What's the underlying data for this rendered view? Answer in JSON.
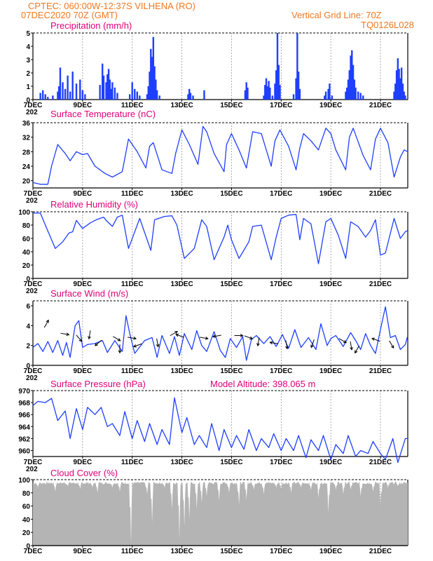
{
  "header": {
    "line1": "CPTEC:   060:00W-12:37S   VILHENA (RO)",
    "line2": "07DEC2020 70Z (GMT)",
    "grid_note": "Vertical Grid Line: 70Z",
    "model_code": "TQ0126L028"
  },
  "colors": {
    "header": "#f07820",
    "panel_title": "#e0007a",
    "series": "#1f3fff",
    "cloud_fill": "#b4b4b4",
    "arrow": "#000000"
  },
  "x_axis": {
    "ticks": [
      "7DEC",
      "9DEC",
      "11DEC",
      "13DEC",
      "15DEC",
      "17DEC",
      "19DEC",
      "21DEC"
    ],
    "range_days": [
      7,
      22.1
    ],
    "stub_label": "202"
  },
  "panels": {
    "precipitation": {
      "title": "Precipitation (mm/h)",
      "yticks": [
        "0",
        "1",
        "2",
        "3",
        "4",
        "5"
      ]
    },
    "temperature": {
      "title": "Surface Temperature (nC)",
      "yticks": [
        "20",
        "24",
        "28",
        "32",
        "36"
      ]
    },
    "humidity": {
      "title": "Relative Humidity (%)",
      "yticks": [
        "0",
        "20",
        "40",
        "60",
        "80",
        "100"
      ]
    },
    "wind": {
      "title": "Surface Wind (m/s)",
      "yticks": [
        "0",
        "2",
        "4",
        "6"
      ]
    },
    "pressure": {
      "title": "Surface Pressure (hPa)",
      "altitude": "Model Altitude: 398.065 m",
      "yticks": [
        "960",
        "962",
        "964",
        "966",
        "968",
        "970"
      ]
    },
    "cloud": {
      "title": "Cloud Cover (%)",
      "yticks": [
        "0",
        "20",
        "40",
        "60",
        "80",
        "100"
      ]
    }
  },
  "chart_data": [
    {
      "type": "bar",
      "id": "precipitation",
      "title": "Precipitation (mm/h)",
      "ylim": [
        0,
        5
      ],
      "x_unit": "day of December 2020",
      "spikes": [
        [
          7.3,
          0.5
        ],
        [
          7.4,
          0.7
        ],
        [
          7.5,
          0.4
        ],
        [
          7.6,
          0.2
        ],
        [
          7.8,
          0.3
        ],
        [
          8.0,
          0.6
        ],
        [
          8.05,
          1.0
        ],
        [
          8.1,
          2.4
        ],
        [
          8.2,
          1.3
        ],
        [
          8.3,
          0.8
        ],
        [
          8.4,
          1.8
        ],
        [
          8.5,
          0.6
        ],
        [
          8.6,
          2.1
        ],
        [
          8.75,
          1.2
        ],
        [
          8.9,
          1.5
        ],
        [
          9.0,
          0.7
        ],
        [
          9.1,
          0.4
        ],
        [
          9.7,
          1.1
        ],
        [
          9.8,
          2.7
        ],
        [
          9.85,
          1.8
        ],
        [
          9.95,
          1.3
        ],
        [
          10.0,
          1.9
        ],
        [
          10.05,
          2.3
        ],
        [
          10.1,
          1.5
        ],
        [
          10.15,
          0.8
        ],
        [
          10.2,
          1.3
        ],
        [
          10.3,
          0.9
        ],
        [
          10.4,
          0.5
        ],
        [
          10.9,
          0.4
        ],
        [
          11.0,
          1.3
        ],
        [
          11.1,
          0.8
        ],
        [
          11.2,
          0.6
        ],
        [
          11.3,
          0.3
        ],
        [
          11.6,
          0.4
        ],
        [
          11.65,
          1.0
        ],
        [
          11.7,
          2.1
        ],
        [
          11.75,
          3.8
        ],
        [
          11.8,
          3.2
        ],
        [
          11.85,
          4.7
        ],
        [
          11.9,
          2.5
        ],
        [
          11.95,
          1.5
        ],
        [
          12.0,
          0.7
        ],
        [
          12.1,
          0.3
        ],
        [
          13.25,
          0.4
        ],
        [
          13.3,
          0.8
        ],
        [
          13.35,
          0.5
        ],
        [
          13.45,
          0.3
        ],
        [
          13.9,
          0.7
        ],
        [
          15.55,
          0.7
        ],
        [
          15.6,
          1.3
        ],
        [
          15.65,
          0.9
        ],
        [
          16.3,
          0.3
        ],
        [
          16.35,
          1.1
        ],
        [
          16.4,
          1.6
        ],
        [
          16.45,
          1.0
        ],
        [
          16.5,
          1.4
        ],
        [
          16.55,
          0.9
        ],
        [
          16.65,
          0.3
        ],
        [
          16.75,
          1.2
        ],
        [
          16.8,
          2.2
        ],
        [
          16.85,
          5.0
        ],
        [
          16.9,
          2.6
        ],
        [
          16.95,
          1.1
        ],
        [
          17.5,
          0.4
        ],
        [
          17.6,
          1.6
        ],
        [
          17.65,
          5.0
        ],
        [
          17.7,
          2.1
        ],
        [
          17.75,
          0.8
        ],
        [
          18.75,
          0.3
        ],
        [
          18.8,
          0.6
        ],
        [
          18.9,
          0.8
        ],
        [
          18.95,
          1.2
        ],
        [
          19.05,
          0.3
        ],
        [
          19.6,
          0.6
        ],
        [
          19.65,
          0.9
        ],
        [
          19.7,
          1.5
        ],
        [
          19.75,
          2.2
        ],
        [
          19.8,
          3.3
        ],
        [
          19.85,
          3.7
        ],
        [
          19.9,
          2.6
        ],
        [
          19.95,
          1.5
        ],
        [
          20.0,
          0.9
        ],
        [
          20.1,
          0.6
        ],
        [
          20.2,
          0.5
        ],
        [
          20.3,
          0.3
        ],
        [
          21.55,
          0.6
        ],
        [
          21.6,
          1.2
        ],
        [
          21.65,
          2.2
        ],
        [
          21.7,
          3.1
        ],
        [
          21.75,
          2.3
        ],
        [
          21.8,
          1.6
        ],
        [
          21.85,
          2.4
        ],
        [
          21.9,
          1.2
        ],
        [
          21.95,
          0.6
        ],
        [
          22.0,
          0.3
        ]
      ]
    },
    {
      "type": "line",
      "id": "temperature",
      "title": "Surface Temperature (nC)",
      "ylim": [
        18,
        36
      ],
      "x": [
        7.0,
        7.3,
        7.6,
        7.75,
        8.0,
        8.3,
        8.5,
        8.75,
        9.0,
        9.2,
        9.5,
        9.9,
        10.2,
        10.6,
        10.85,
        11.2,
        11.55,
        11.7,
        11.85,
        12.2,
        12.6,
        12.75,
        13.0,
        13.3,
        13.65,
        13.85,
        14.0,
        14.3,
        14.7,
        14.8,
        15.0,
        15.3,
        15.6,
        15.85,
        16.2,
        16.6,
        16.75,
        16.95,
        17.3,
        17.6,
        17.75,
        17.9,
        18.2,
        18.5,
        18.8,
        19.0,
        19.2,
        19.6,
        19.75,
        19.9,
        20.3,
        20.6,
        20.8,
        21.0,
        21.3,
        21.55,
        21.8,
        21.95,
        22.1
      ],
      "y": [
        19.5,
        19.0,
        19.0,
        24.0,
        30.0,
        27.5,
        25.5,
        28.0,
        27.2,
        27.5,
        24.0,
        22.0,
        21.0,
        22.5,
        31.5,
        28.0,
        23.5,
        29.5,
        30.5,
        23.0,
        22.0,
        27.5,
        34.0,
        30.0,
        24.5,
        35.0,
        33.5,
        27.5,
        22.5,
        30.0,
        33.0,
        28.5,
        23.5,
        33.5,
        33.0,
        24.0,
        31.0,
        34.0,
        29.5,
        23.0,
        29.0,
        33.0,
        31.0,
        28.5,
        34.5,
        33.0,
        28.5,
        23.0,
        32.0,
        34.5,
        27.0,
        23.0,
        31.5,
        34.5,
        30.5,
        21.0,
        26.5,
        28.5,
        28.0
      ]
    },
    {
      "type": "line",
      "id": "humidity",
      "title": "Relative Humidity (%)",
      "ylim": [
        0,
        100
      ],
      "x": [
        7.0,
        7.3,
        7.5,
        7.9,
        8.2,
        8.45,
        8.6,
        8.75,
        9.0,
        9.3,
        9.55,
        9.85,
        9.95,
        10.2,
        10.4,
        10.6,
        10.85,
        11.3,
        11.75,
        11.9,
        12.3,
        12.6,
        12.8,
        13.1,
        13.5,
        13.8,
        14.0,
        14.3,
        14.7,
        14.85,
        15.0,
        15.3,
        15.7,
        15.85,
        16.2,
        16.6,
        16.8,
        17.0,
        17.3,
        17.6,
        17.75,
        17.9,
        18.2,
        18.5,
        18.8,
        19.0,
        19.3,
        19.6,
        19.8,
        20.1,
        20.4,
        20.6,
        20.8,
        21.0,
        21.2,
        21.55,
        21.8,
        22.0,
        22.1
      ],
      "y": [
        98,
        98,
        80,
        45,
        55,
        68,
        70,
        87,
        75,
        83,
        88,
        92,
        87,
        78,
        92,
        95,
        45,
        90,
        42,
        88,
        93,
        94,
        80,
        30,
        45,
        88,
        78,
        28,
        62,
        80,
        58,
        30,
        55,
        78,
        80,
        28,
        62,
        90,
        95,
        96,
        58,
        90,
        82,
        22,
        85,
        90,
        65,
        30,
        85,
        78,
        62,
        72,
        88,
        35,
        38,
        90,
        60,
        70,
        72
      ]
    },
    {
      "type": "line",
      "id": "wind",
      "title": "Surface Wind (m/s)",
      "ylim": [
        0,
        6.5
      ],
      "x": [
        7.0,
        7.2,
        7.4,
        7.6,
        7.8,
        8.0,
        8.2,
        8.35,
        8.5,
        8.7,
        8.85,
        9.0,
        9.2,
        9.5,
        9.8,
        10.0,
        10.3,
        10.6,
        10.75,
        10.9,
        11.1,
        11.5,
        11.8,
        12.0,
        12.2,
        12.5,
        12.7,
        12.9,
        13.1,
        13.4,
        13.6,
        13.8,
        14.0,
        14.3,
        14.55,
        14.75,
        14.95,
        15.2,
        15.45,
        15.6,
        15.8,
        16.0,
        16.3,
        16.55,
        16.8,
        17.05,
        17.3,
        17.55,
        17.8,
        18.1,
        18.4,
        18.6,
        18.85,
        19.0,
        19.2,
        19.5,
        19.8,
        20.0,
        20.2,
        20.4,
        20.6,
        20.8,
        21.0,
        21.2,
        21.4,
        21.6,
        21.8,
        22.0,
        22.1
      ],
      "y": [
        1.8,
        2.2,
        1.4,
        2.4,
        1.3,
        2.5,
        1.0,
        2.3,
        0.8,
        4.0,
        4.5,
        1.8,
        2.1,
        2.2,
        2.5,
        1.3,
        2.5,
        1.4,
        5.0,
        3.2,
        1.2,
        2.5,
        2.8,
        0.8,
        3.0,
        1.2,
        2.9,
        1.0,
        3.2,
        1.6,
        3.5,
        2.0,
        1.4,
        3.4,
        1.5,
        0.8,
        2.7,
        1.8,
        2.9,
        0.5,
        2.6,
        3.0,
        2.2,
        2.9,
        1.9,
        3.1,
        1.7,
        3.6,
        1.8,
        2.8,
        1.6,
        4.2,
        2.0,
        2.7,
        3.0,
        1.9,
        3.3,
        2.5,
        1.6,
        3.2,
        2.0,
        1.2,
        3.6,
        5.9,
        2.8,
        3.0,
        1.6,
        2.1,
        3.0
      ]
    },
    {
      "type": "line",
      "id": "pressure",
      "title": "Surface Pressure (hPa)",
      "ylim": [
        959,
        970
      ],
      "x": [
        7.0,
        7.2,
        7.5,
        7.75,
        8.0,
        8.3,
        8.5,
        8.75,
        9.0,
        9.2,
        9.5,
        9.75,
        10.0,
        10.2,
        10.5,
        10.7,
        11.0,
        11.2,
        11.5,
        11.7,
        12.0,
        12.2,
        12.5,
        12.7,
        13.0,
        13.2,
        13.5,
        13.7,
        14.0,
        14.2,
        14.5,
        14.7,
        15.0,
        15.2,
        15.5,
        15.7,
        16.0,
        16.2,
        16.5,
        16.7,
        17.0,
        17.2,
        17.5,
        17.7,
        18.0,
        18.2,
        18.5,
        18.7,
        19.0,
        19.2,
        19.5,
        19.7,
        20.0,
        20.2,
        20.5,
        20.7,
        21.0,
        21.2,
        21.5,
        21.7,
        22.0,
        22.1
      ],
      "y": [
        967.5,
        968.2,
        968.0,
        968.7,
        965.0,
        966.6,
        962.0,
        967.0,
        963.5,
        967.2,
        966.0,
        967.2,
        964.0,
        964.5,
        962.5,
        966.5,
        962.0,
        965.0,
        961.5,
        964.5,
        961.0,
        963.5,
        961.0,
        968.8,
        963.0,
        965.5,
        961.0,
        962.5,
        960.5,
        964.5,
        960.0,
        963.5,
        960.5,
        962.5,
        960.2,
        963.5,
        960.0,
        962.0,
        960.5,
        962.8,
        960.0,
        962.0,
        960.0,
        962.5,
        958.8,
        961.8,
        960.0,
        962.5,
        958.5,
        961.0,
        959.5,
        962.5,
        959.0,
        960.0,
        959.5,
        961.5,
        959.5,
        958.5,
        962.0,
        958.0,
        962.0,
        962.0
      ]
    },
    {
      "type": "area",
      "id": "cloud",
      "title": "Cloud Cover (%)",
      "ylim": [
        0,
        100
      ],
      "baseline_value": 95,
      "dips": [
        [
          7.2,
          88
        ],
        [
          7.9,
          82
        ],
        [
          8.4,
          90
        ],
        [
          8.9,
          86
        ],
        [
          9.4,
          88
        ],
        [
          9.6,
          80
        ],
        [
          10.2,
          88
        ],
        [
          10.5,
          82
        ],
        [
          10.95,
          3
        ],
        [
          11.6,
          78
        ],
        [
          11.8,
          35
        ],
        [
          12.3,
          88
        ],
        [
          12.6,
          55
        ],
        [
          12.9,
          10
        ],
        [
          13.1,
          30
        ],
        [
          13.3,
          40
        ],
        [
          13.6,
          55
        ],
        [
          13.8,
          65
        ],
        [
          14.0,
          75
        ],
        [
          14.5,
          68
        ],
        [
          14.9,
          80
        ],
        [
          15.3,
          62
        ],
        [
          15.6,
          70
        ],
        [
          15.9,
          85
        ],
        [
          16.3,
          78
        ],
        [
          16.8,
          88
        ],
        [
          17.0,
          85
        ],
        [
          17.4,
          80
        ],
        [
          17.8,
          88
        ],
        [
          18.2,
          84
        ],
        [
          18.5,
          72
        ],
        [
          18.9,
          50
        ],
        [
          19.2,
          85
        ],
        [
          19.5,
          78
        ],
        [
          19.8,
          85
        ],
        [
          20.2,
          75
        ],
        [
          20.7,
          82
        ],
        [
          21.0,
          60
        ],
        [
          21.3,
          88
        ],
        [
          21.7,
          90
        ]
      ]
    }
  ]
}
